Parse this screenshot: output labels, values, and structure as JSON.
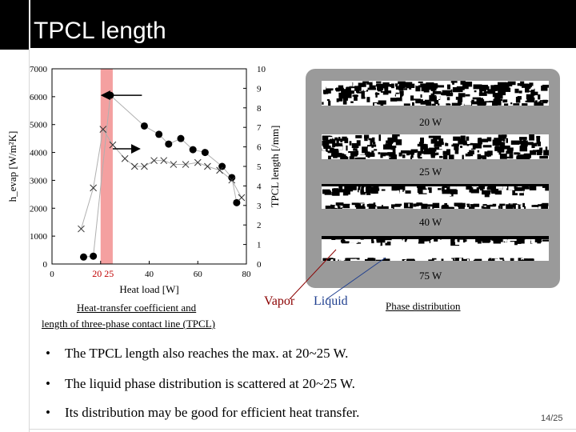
{
  "slide": {
    "title": "TPCL length",
    "page_number": "14/25"
  },
  "chart_data": {
    "type": "scatter",
    "xlabel": "Heat load [W]",
    "ylabel_left": "h_evap [W/m²K]",
    "ylabel_right": "TPCL length [/mm]",
    "xlim": [
      0,
      80
    ],
    "ylim_left": [
      0,
      7000
    ],
    "ylim_right": [
      0,
      10
    ],
    "x_ticks": [
      "0",
      "20",
      "40",
      "60",
      "80"
    ],
    "y_left_ticks": [
      "0",
      "1000",
      "2000",
      "3000",
      "4000",
      "5000",
      "6000",
      "7000"
    ],
    "y_right_ticks": [
      "0",
      "1",
      "2",
      "3",
      "4",
      "5",
      "6",
      "7",
      "8",
      "9",
      "10"
    ],
    "highlight_range_label": "20 25",
    "highlight_range": [
      20,
      25
    ],
    "series": [
      {
        "name": "h_evap",
        "marker": "circle",
        "points": [
          [
            13,
            250
          ],
          [
            17,
            280
          ],
          [
            24,
            6050
          ],
          [
            38,
            4950
          ],
          [
            44,
            4650
          ],
          [
            48,
            4300
          ],
          [
            53,
            4500
          ],
          [
            58,
            4100
          ],
          [
            63,
            4000
          ],
          [
            70,
            3500
          ],
          [
            74,
            3100
          ],
          [
            76,
            2200
          ]
        ]
      },
      {
        "name": "TPCL length",
        "marker": "x",
        "points": [
          [
            12,
            1.8
          ],
          [
            17,
            3.9
          ],
          [
            21,
            6.9
          ],
          [
            25,
            6.1
          ],
          [
            30,
            5.4
          ],
          [
            34,
            5.0
          ],
          [
            38,
            5.0
          ],
          [
            42,
            5.3
          ],
          [
            46,
            5.3
          ],
          [
            50,
            5.1
          ],
          [
            55,
            5.1
          ],
          [
            60,
            5.2
          ],
          [
            64,
            5.0
          ],
          [
            69,
            4.8
          ],
          [
            74,
            4.3
          ],
          [
            78,
            3.4
          ]
        ]
      }
    ]
  },
  "chart_annotations": {
    "arrow_left_points_to": "h_evap at 20~25 W",
    "arrow_right_points_to": "TPCL length"
  },
  "phase_panel": {
    "strips": [
      {
        "label": "20 W"
      },
      {
        "label": "25 W"
      },
      {
        "label": "40 W"
      },
      {
        "label": "75 W"
      }
    ],
    "vapor_label": "Vapor",
    "liquid_label": "Liquid",
    "caption": "Phase distribution"
  },
  "chart_caption": {
    "line1": "Heat-transfer coefficient and",
    "line2": "length of three-phase contact line (TPCL)"
  },
  "bullets": [
    "The TPCL length also reaches the max. at 20~25 W.",
    "The liquid phase distribution is scattered at 20~25 W.",
    "Its distribution may be good for efficient heat transfer."
  ],
  "bullet_symbol": "•"
}
